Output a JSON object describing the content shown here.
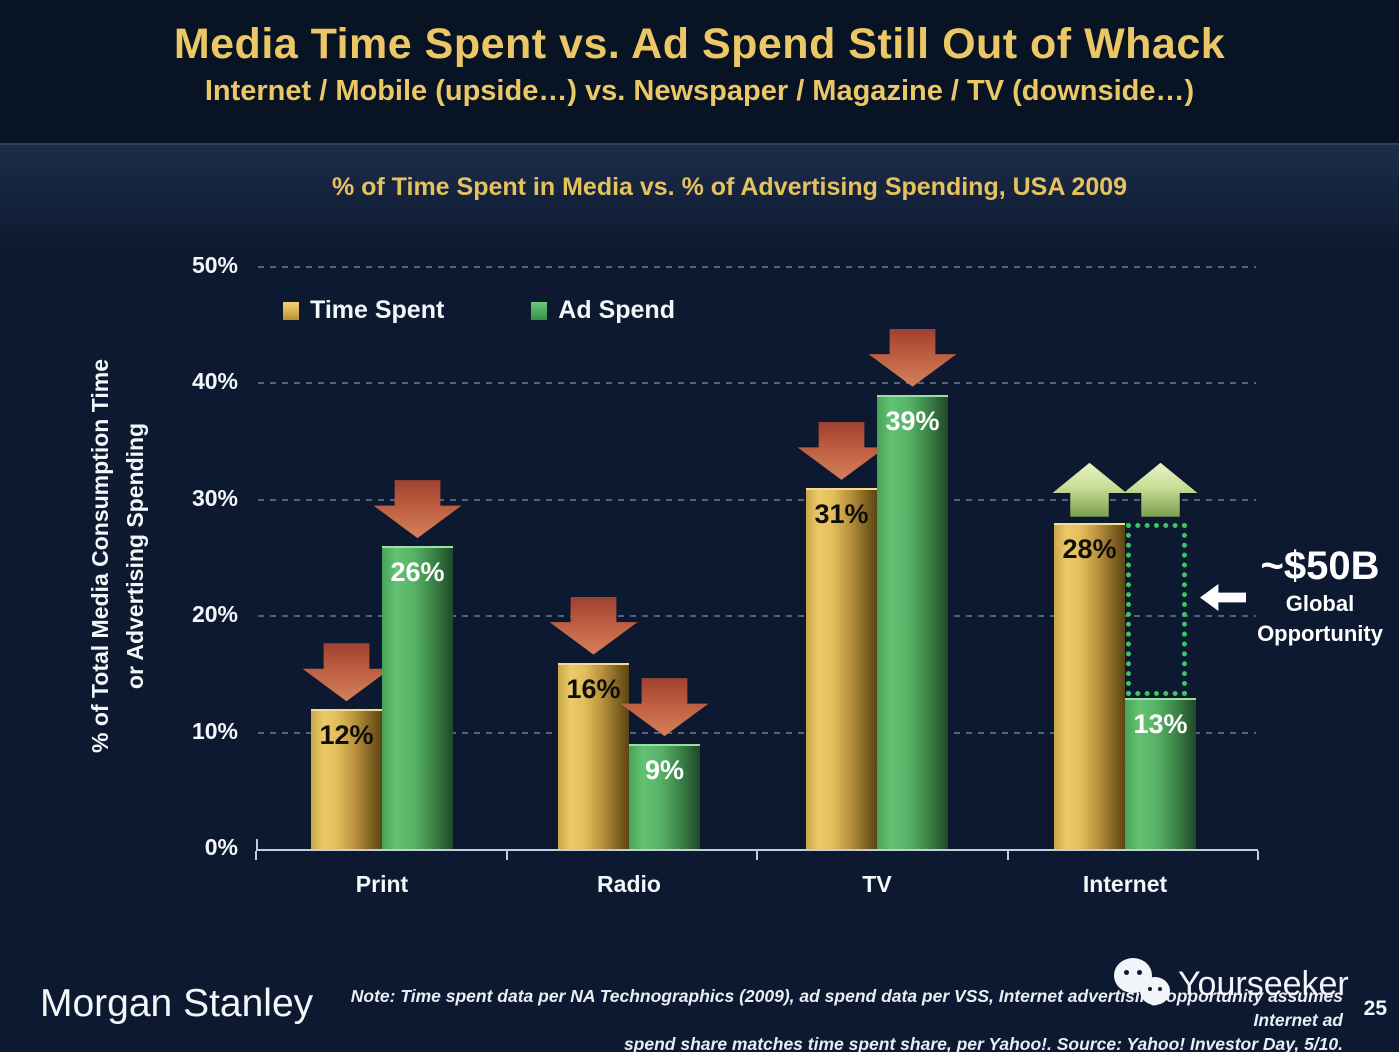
{
  "header": {
    "title": "Media Time Spent vs. Ad Spend Still Out of Whack",
    "subtitle": "Internet / Mobile (upside…) vs. Newspaper / Magazine / TV (downside…)"
  },
  "chart_data": {
    "type": "bar",
    "title": "% of Time Spent in Media vs. % of Advertising Spending, USA 2009",
    "categories": [
      {
        "label": "Print",
        "trend": "down"
      },
      {
        "label": "Radio",
        "trend": "down"
      },
      {
        "label": "TV",
        "trend": "down"
      },
      {
        "label": "Internet",
        "trend": "up"
      }
    ],
    "series": [
      {
        "name": "Time Spent",
        "color": "#e2bd5b",
        "values": [
          12,
          16,
          31,
          28
        ]
      },
      {
        "name": "Ad Spend",
        "color": "#57b267",
        "values": [
          26,
          9,
          39,
          13
        ]
      }
    ],
    "value_label_suffix": "%",
    "yticks": [
      {
        "value": 0,
        "label": "0%"
      },
      {
        "value": 10,
        "label": "10%"
      },
      {
        "value": 20,
        "label": "20%"
      },
      {
        "value": 30,
        "label": "30%"
      },
      {
        "value": 40,
        "label": "40%"
      },
      {
        "value": 50,
        "label": "50%"
      }
    ],
    "ylim": [
      0,
      50
    ],
    "ylabel_line1": "% of Total Media Consumption Time",
    "ylabel_line2": "or Advertising Spending",
    "grid": "horizontal-dashed",
    "legend_position": "top-left-inside",
    "annotation": {
      "gap_category": "Internet",
      "value": "~$50B",
      "label_line1": "Global",
      "label_line2": "Opportunity"
    }
  },
  "footer": {
    "brand": "Morgan Stanley",
    "note_line1": "Note: Time spent data per NA Technographics (2009), ad spend data per VSS, Internet advertising opportunity assumes Internet ad",
    "note_line2": "spend share matches time spent share, per Yahoo!. Source: Yahoo! Investor Day, 5/10.",
    "watermark_text": "Yourseeker",
    "page_number": "25"
  },
  "colors": {
    "accent_gold": "#ecc765",
    "time_spent_gold": "#e2bd5b",
    "ad_spend_green": "#57b267",
    "down_arrow_red": "#bb5a3e",
    "up_arrow_green": "#c9de96",
    "opportunity_box_green": "#3ec563",
    "background_navy": "#0c1930"
  }
}
